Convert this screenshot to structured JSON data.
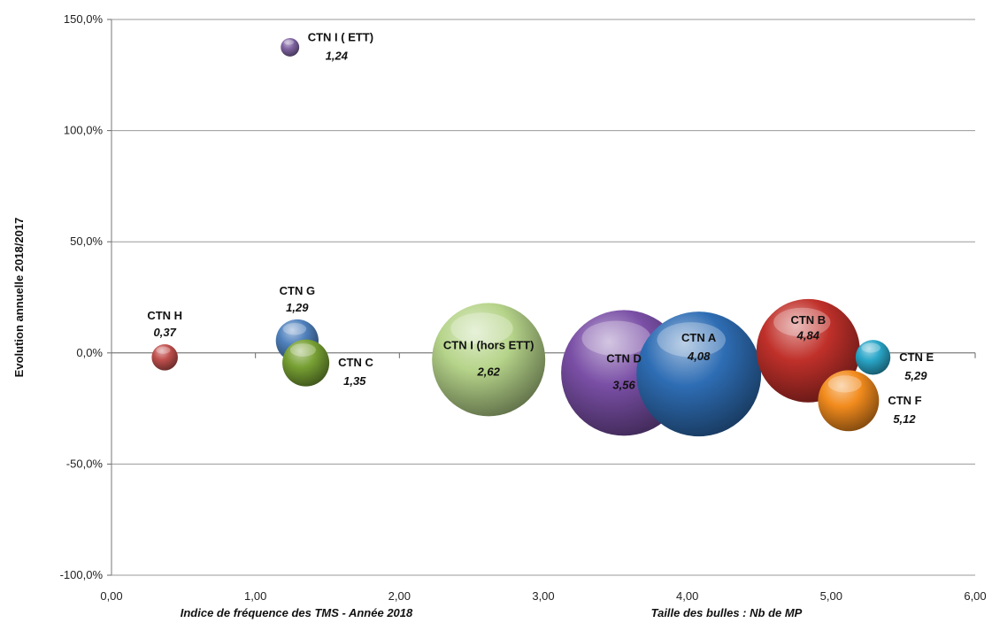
{
  "chart_data": {
    "type": "bubble",
    "xlabel": "Indice de fréquence des TMS - Année 2018",
    "ylabel": "Evolution annuelle 2018/2017",
    "size_note": "Taille des bulles : Nb de MP",
    "xlim": [
      0,
      6
    ],
    "ylim": [
      -1.0,
      1.5
    ],
    "x_ticks": [
      "0,00",
      "1,00",
      "2,00",
      "3,00",
      "4,00",
      "5,00",
      "6,00"
    ],
    "y_ticks": [
      "-100,0%",
      "-50,0%",
      "0,0%",
      "50,0%",
      "100,0%",
      "150,0%"
    ],
    "grid": "horizontal",
    "points": [
      {
        "name": "CTN H",
        "value_label": "0,37",
        "x": 0.37,
        "y": -0.02,
        "size": 90,
        "color": "#c0504d",
        "label_pos": "above"
      },
      {
        "name": "CTN I ( ETT)",
        "value_label": "1,24",
        "x": 1.24,
        "y": 1.375,
        "size": 45,
        "color": "#8064a2",
        "label_pos": "right-top"
      },
      {
        "name": "CTN G",
        "value_label": "1,29",
        "x": 1.29,
        "y": 0.055,
        "size": 240,
        "color": "#4f81bd",
        "label_pos": "above"
      },
      {
        "name": "CTN C",
        "value_label": "1,35",
        "x": 1.35,
        "y": -0.045,
        "size": 290,
        "color": "#77a033",
        "label_pos": "right"
      },
      {
        "name": "CTN I (hors ETT)",
        "value_label": "2,62",
        "x": 2.62,
        "y": -0.03,
        "size": 1690,
        "color": "#b6d48a",
        "label_pos": "inside"
      },
      {
        "name": "CTN D",
        "value_label": "3,56",
        "x": 3.56,
        "y": -0.09,
        "size": 2080,
        "color": "#7a4fa6",
        "label_pos": "inside"
      },
      {
        "name": "CTN A",
        "value_label": "4,08",
        "x": 4.08,
        "y": -0.095,
        "size": 2050,
        "color": "#2e6db4",
        "label_pos": "inside-top"
      },
      {
        "name": "CTN B",
        "value_label": "4,84",
        "x": 4.84,
        "y": 0.01,
        "size": 1410,
        "color": "#c0302a",
        "label_pos": "inside-top"
      },
      {
        "name": "CTN E",
        "value_label": "5,29",
        "x": 5.29,
        "y": -0.02,
        "size": 160,
        "color": "#2aa6c8",
        "label_pos": "right"
      },
      {
        "name": "CTN F",
        "value_label": "5,12",
        "x": 5.12,
        "y": -0.215,
        "size": 490,
        "color": "#f28b1d",
        "label_pos": "right"
      }
    ]
  }
}
